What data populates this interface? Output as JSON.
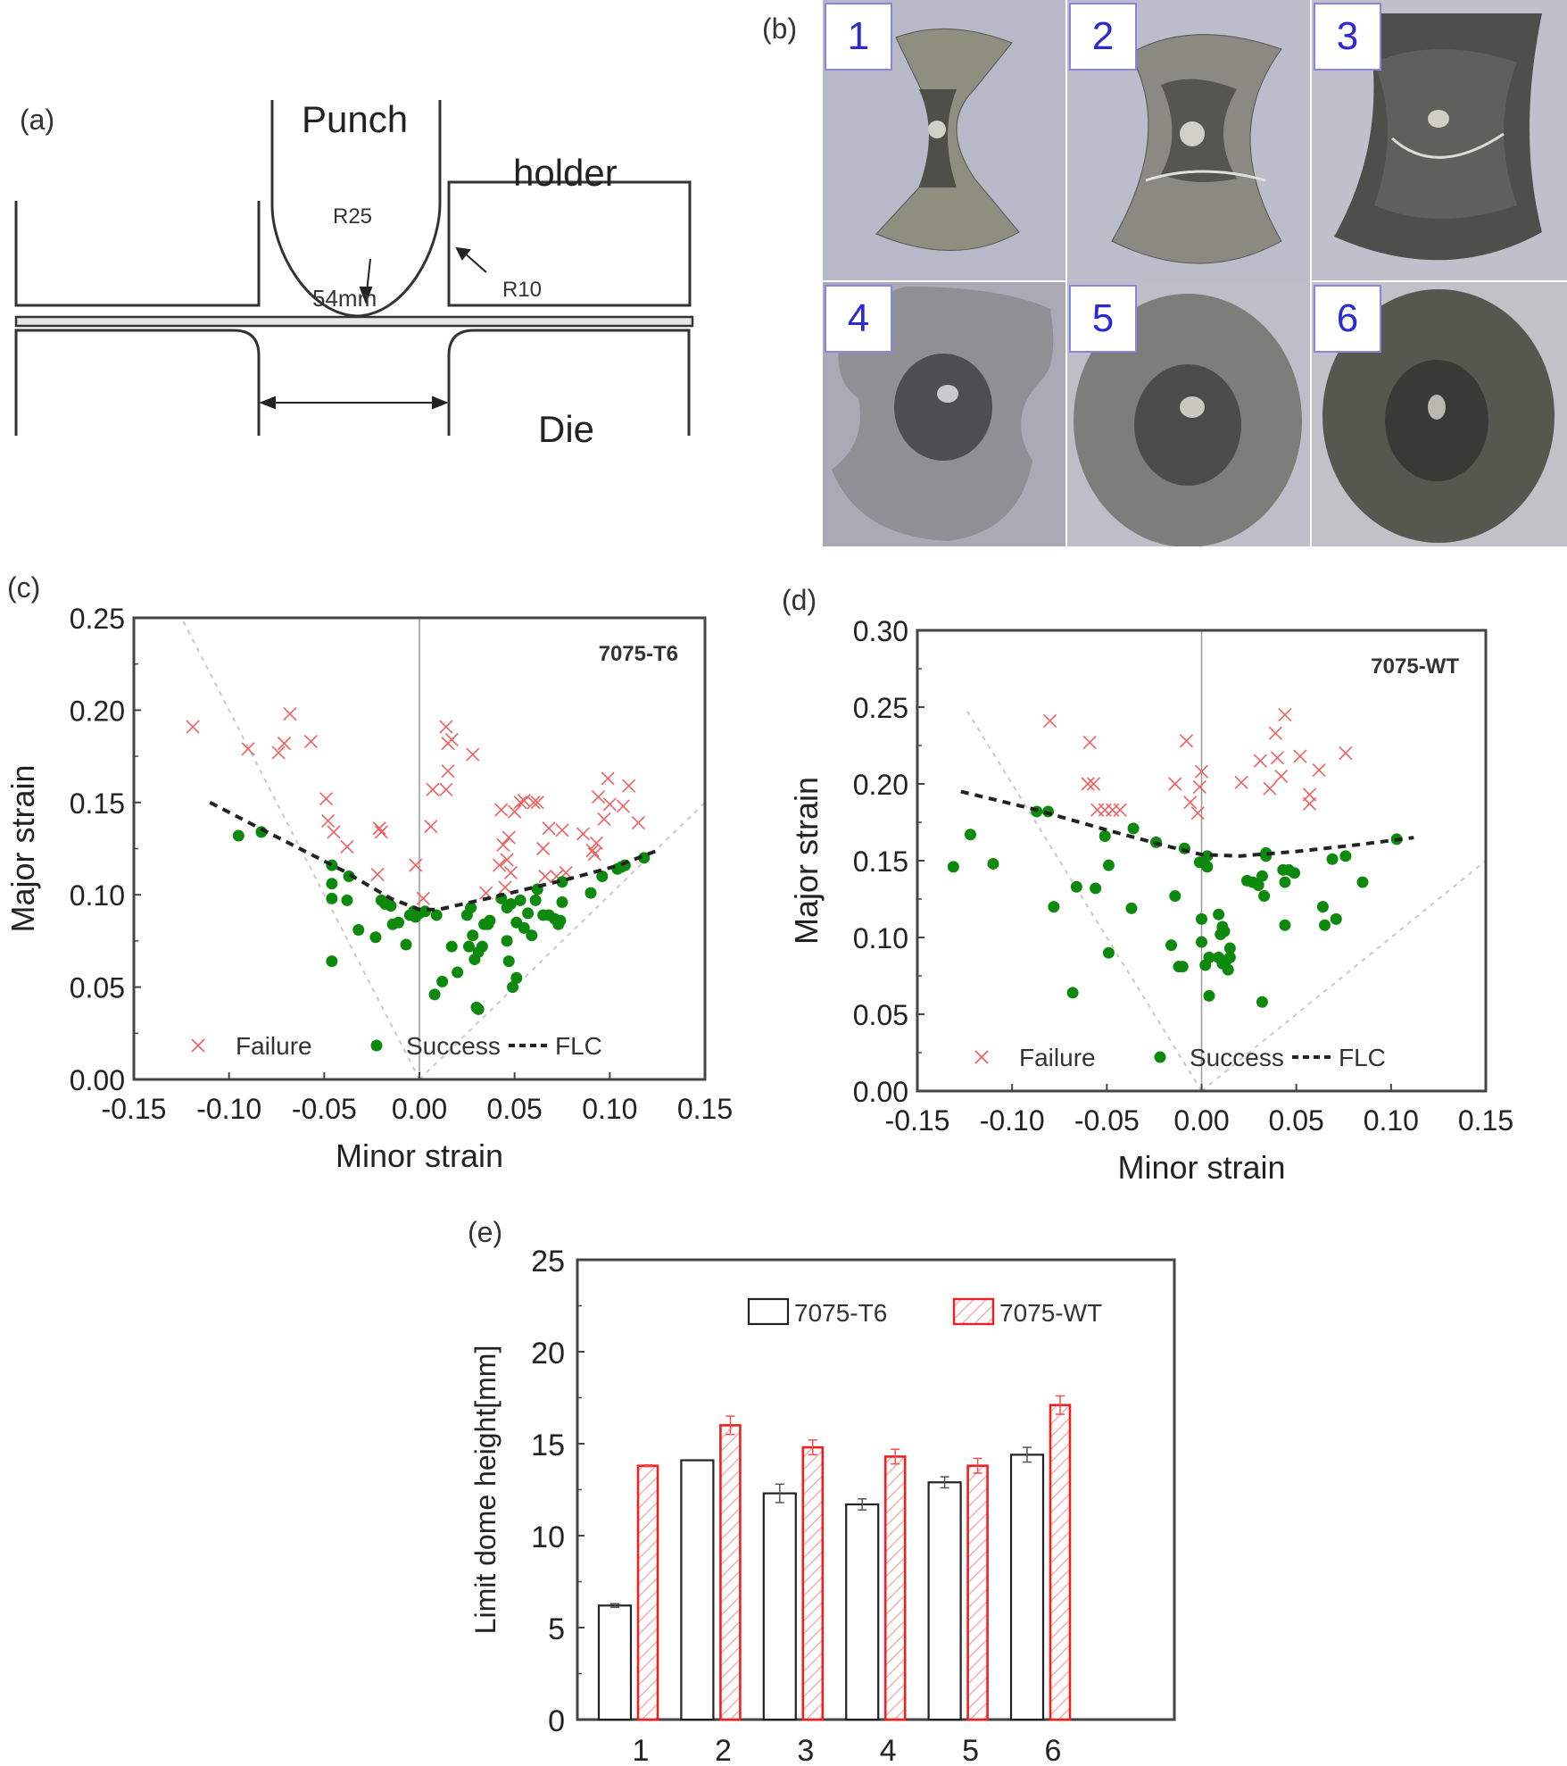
{
  "panels": {
    "a": {
      "label": "(a)",
      "punch": "Punch",
      "holder": "holder",
      "die": "Die",
      "punch_radius": "R25",
      "die_radius": "R10",
      "gap": "54mm"
    },
    "b": {
      "label": "(b)",
      "specimens": [
        "1",
        "2",
        "3",
        "4",
        "5",
        "6"
      ]
    },
    "c": {
      "label": "(c)"
    },
    "d": {
      "label": "(d)"
    },
    "e": {
      "label": "(e)"
    }
  },
  "chart_data": [
    {
      "id": "c",
      "type": "scatter",
      "title": "",
      "annotation": "7075-T6",
      "xlabel": "Minor strain",
      "ylabel": "Major strain",
      "xlim": [
        -0.15,
        0.15
      ],
      "ylim": [
        0.0,
        0.25
      ],
      "xticks": [
        "-0.15",
        "-0.10",
        "-0.05",
        "0.00",
        "0.05",
        "0.10",
        "0.15"
      ],
      "yticks": [
        "0.00",
        "0.05",
        "0.10",
        "0.15",
        "0.20",
        "0.25"
      ],
      "legend": {
        "placement": "bottom",
        "entries": [
          "Failure",
          "Success",
          "FLC"
        ]
      },
      "grid": false,
      "series": [
        {
          "name": "Failure",
          "marker": "x",
          "color": "#f06060",
          "points": [
            [
              -0.119,
              0.191
            ],
            [
              -0.09,
              0.179
            ],
            [
              -0.074,
              0.177
            ],
            [
              -0.071,
              0.182
            ],
            [
              -0.068,
              0.198
            ],
            [
              -0.057,
              0.183
            ],
            [
              -0.049,
              0.152
            ],
            [
              -0.048,
              0.14
            ],
            [
              -0.045,
              0.134
            ],
            [
              -0.038,
              0.126
            ],
            [
              -0.021,
              0.136
            ],
            [
              -0.02,
              0.134
            ],
            [
              -0.022,
              0.111
            ],
            [
              -0.002,
              0.116
            ],
            [
              0.002,
              0.098
            ],
            [
              0.006,
              0.137
            ],
            [
              0.007,
              0.157
            ],
            [
              0.014,
              0.157
            ],
            [
              0.015,
              0.167
            ],
            [
              0.014,
              0.191
            ],
            [
              0.015,
              0.182
            ],
            [
              0.017,
              0.184
            ],
            [
              0.028,
              0.176
            ],
            [
              0.035,
              0.101
            ],
            [
              0.042,
              0.116
            ],
            [
              0.043,
              0.146
            ],
            [
              0.044,
              0.127
            ],
            [
              0.046,
              0.119
            ],
            [
              0.047,
              0.131
            ],
            [
              0.048,
              0.112
            ],
            [
              0.045,
              0.104
            ],
            [
              0.05,
              0.145
            ],
            [
              0.053,
              0.15
            ],
            [
              0.055,
              0.151
            ],
            [
              0.06,
              0.15
            ],
            [
              0.062,
              0.15
            ],
            [
              0.065,
              0.125
            ],
            [
              0.066,
              0.11
            ],
            [
              0.068,
              0.136
            ],
            [
              0.072,
              0.11
            ],
            [
              0.075,
              0.135
            ],
            [
              0.077,
              0.112
            ],
            [
              0.086,
              0.133
            ],
            [
              0.091,
              0.124
            ],
            [
              0.093,
              0.128
            ],
            [
              0.094,
              0.153
            ],
            [
              0.097,
              0.141
            ],
            [
              0.099,
              0.163
            ],
            [
              0.1,
              0.149
            ],
            [
              0.107,
              0.148
            ],
            [
              0.11,
              0.159
            ],
            [
              0.115,
              0.139
            ],
            [
              0.092,
              0.122
            ]
          ]
        },
        {
          "name": "Success",
          "marker": "o",
          "color": "#0d8a0d",
          "points": [
            [
              -0.095,
              0.132
            ],
            [
              -0.083,
              0.134
            ],
            [
              -0.046,
              0.116
            ],
            [
              -0.046,
              0.106
            ],
            [
              -0.046,
              0.098
            ],
            [
              -0.046,
              0.064
            ],
            [
              -0.037,
              0.11
            ],
            [
              -0.038,
              0.097
            ],
            [
              -0.032,
              0.081
            ],
            [
              -0.023,
              0.077
            ],
            [
              -0.02,
              0.097
            ],
            [
              -0.018,
              0.095
            ],
            [
              -0.017,
              0.096
            ],
            [
              -0.015,
              0.094
            ],
            [
              -0.014,
              0.084
            ],
            [
              -0.011,
              0.085
            ],
            [
              -0.007,
              0.073
            ],
            [
              -0.005,
              0.089
            ],
            [
              -0.003,
              0.091
            ],
            [
              -0.002,
              0.088
            ],
            [
              0.0,
              0.09
            ],
            [
              0.003,
              0.091
            ],
            [
              0.009,
              0.089
            ],
            [
              0.008,
              0.046
            ],
            [
              0.012,
              0.053
            ],
            [
              0.017,
              0.072
            ],
            [
              0.02,
              0.058
            ],
            [
              0.025,
              0.089
            ],
            [
              0.026,
              0.072
            ],
            [
              0.027,
              0.093
            ],
            [
              0.028,
              0.078
            ],
            [
              0.029,
              0.065
            ],
            [
              0.03,
              0.039
            ],
            [
              0.031,
              0.069
            ],
            [
              0.031,
              0.038
            ],
            [
              0.033,
              0.072
            ],
            [
              0.034,
              0.084
            ],
            [
              0.036,
              0.084
            ],
            [
              0.037,
              0.086
            ],
            [
              0.043,
              0.098
            ],
            [
              0.046,
              0.093
            ],
            [
              0.046,
              0.075
            ],
            [
              0.047,
              0.064
            ],
            [
              0.048,
              0.095
            ],
            [
              0.049,
              0.05
            ],
            [
              0.051,
              0.085
            ],
            [
              0.051,
              0.055
            ],
            [
              0.053,
              0.097
            ],
            [
              0.055,
              0.082
            ],
            [
              0.057,
              0.09
            ],
            [
              0.059,
              0.078
            ],
            [
              0.061,
              0.097
            ],
            [
              0.062,
              0.103
            ],
            [
              0.065,
              0.089
            ],
            [
              0.068,
              0.089
            ],
            [
              0.071,
              0.087
            ],
            [
              0.073,
              0.084
            ],
            [
              0.074,
              0.086
            ],
            [
              0.075,
              0.096
            ],
            [
              0.075,
              0.107
            ],
            [
              0.09,
              0.101
            ],
            [
              0.096,
              0.11
            ],
            [
              0.104,
              0.114
            ],
            [
              0.106,
              0.115
            ],
            [
              0.108,
              0.116
            ],
            [
              0.118,
              0.12
            ]
          ]
        },
        {
          "name": "FLC",
          "style": "dashed",
          "color": "#222222",
          "points": [
            [
              -0.11,
              0.15
            ],
            [
              -0.08,
              0.134
            ],
            [
              -0.04,
              0.113
            ],
            [
              -0.015,
              0.098
            ],
            [
              0.0,
              0.092
            ],
            [
              0.01,
              0.092
            ],
            [
              0.04,
              0.099
            ],
            [
              0.08,
              0.109
            ],
            [
              0.105,
              0.116
            ],
            [
              0.125,
              0.124
            ]
          ]
        }
      ]
    },
    {
      "id": "d",
      "type": "scatter",
      "title": "",
      "annotation": "7075-WT",
      "xlabel": "Minor strain",
      "ylabel": "Major strain",
      "xlim": [
        -0.15,
        0.15
      ],
      "ylim": [
        0.0,
        0.3
      ],
      "xticks": [
        "-0.15",
        "-0.10",
        "-0.05",
        "0.00",
        "0.05",
        "0.10",
        "0.15"
      ],
      "yticks": [
        "0.00",
        "0.05",
        "0.10",
        "0.15",
        "0.20",
        "0.25",
        "0.30"
      ],
      "legend": {
        "placement": "bottom",
        "entries": [
          "Failure",
          "Success",
          "FLC"
        ]
      },
      "grid": false,
      "series": [
        {
          "name": "Failure",
          "marker": "x",
          "color": "#f06060",
          "points": [
            [
              -0.08,
              0.241
            ],
            [
              -0.059,
              0.227
            ],
            [
              -0.06,
              0.2
            ],
            [
              -0.057,
              0.2
            ],
            [
              -0.055,
              0.183
            ],
            [
              -0.051,
              0.183
            ],
            [
              -0.047,
              0.183
            ],
            [
              -0.043,
              0.183
            ],
            [
              -0.008,
              0.228
            ],
            [
              -0.014,
              0.2
            ],
            [
              -0.006,
              0.188
            ],
            [
              0.0,
              0.208
            ],
            [
              -0.001,
              0.198
            ],
            [
              -0.002,
              0.181
            ],
            [
              0.021,
              0.201
            ],
            [
              0.031,
              0.215
            ],
            [
              0.036,
              0.197
            ],
            [
              0.039,
              0.233
            ],
            [
              0.04,
              0.217
            ],
            [
              0.042,
              0.205
            ],
            [
              0.044,
              0.245
            ],
            [
              0.052,
              0.218
            ],
            [
              0.057,
              0.193
            ],
            [
              0.057,
              0.187
            ],
            [
              0.062,
              0.209
            ],
            [
              0.076,
              0.22
            ]
          ]
        },
        {
          "name": "Success",
          "marker": "o",
          "color": "#0d8a0d",
          "points": [
            [
              -0.131,
              0.146
            ],
            [
              -0.122,
              0.167
            ],
            [
              -0.11,
              0.148
            ],
            [
              -0.087,
              0.182
            ],
            [
              -0.081,
              0.182
            ],
            [
              -0.078,
              0.12
            ],
            [
              -0.068,
              0.064
            ],
            [
              -0.066,
              0.133
            ],
            [
              -0.056,
              0.132
            ],
            [
              -0.051,
              0.166
            ],
            [
              -0.049,
              0.147
            ],
            [
              -0.049,
              0.09
            ],
            [
              -0.036,
              0.171
            ],
            [
              -0.037,
              0.119
            ],
            [
              -0.024,
              0.162
            ],
            [
              -0.014,
              0.127
            ],
            [
              -0.016,
              0.095
            ],
            [
              -0.012,
              0.081
            ],
            [
              -0.01,
              0.081
            ],
            [
              -0.009,
              0.158
            ],
            [
              -0.001,
              0.149
            ],
            [
              0.0,
              0.112
            ],
            [
              0.0,
              0.097
            ],
            [
              0.002,
              0.082
            ],
            [
              0.003,
              0.146
            ],
            [
              0.003,
              0.153
            ],
            [
              0.004,
              0.062
            ],
            [
              0.004,
              0.087
            ],
            [
              0.009,
              0.115
            ],
            [
              0.009,
              0.087
            ],
            [
              0.01,
              0.102
            ],
            [
              0.011,
              0.083
            ],
            [
              0.011,
              0.107
            ],
            [
              0.012,
              0.104
            ],
            [
              0.013,
              0.085
            ],
            [
              0.014,
              0.079
            ],
            [
              0.015,
              0.087
            ],
            [
              0.015,
              0.093
            ],
            [
              0.024,
              0.137
            ],
            [
              0.027,
              0.136
            ],
            [
              0.03,
              0.134
            ],
            [
              0.032,
              0.058
            ],
            [
              0.032,
              0.14
            ],
            [
              0.033,
              0.127
            ],
            [
              0.034,
              0.155
            ],
            [
              0.034,
              0.153
            ],
            [
              0.043,
              0.144
            ],
            [
              0.044,
              0.108
            ],
            [
              0.044,
              0.136
            ],
            [
              0.046,
              0.144
            ],
            [
              0.049,
              0.142
            ],
            [
              0.064,
              0.12
            ],
            [
              0.065,
              0.108
            ],
            [
              0.069,
              0.151
            ],
            [
              0.071,
              0.112
            ],
            [
              0.076,
              0.153
            ],
            [
              0.085,
              0.136
            ],
            [
              0.103,
              0.164
            ]
          ]
        },
        {
          "name": "FLC",
          "style": "dashed",
          "color": "#222222",
          "points": [
            [
              -0.127,
              0.195
            ],
            [
              -0.09,
              0.184
            ],
            [
              -0.05,
              0.17
            ],
            [
              -0.02,
              0.16
            ],
            [
              0.0,
              0.154
            ],
            [
              0.02,
              0.153
            ],
            [
              0.05,
              0.156
            ],
            [
              0.08,
              0.16
            ],
            [
              0.112,
              0.165
            ]
          ]
        }
      ]
    },
    {
      "id": "e",
      "type": "bar",
      "title": "",
      "xlabel": "",
      "ylabel": "Limit dome height[mm]",
      "ylim": [
        0,
        25
      ],
      "yticks": [
        "0",
        "5",
        "10",
        "15",
        "20",
        "25"
      ],
      "categories": [
        "1",
        "2",
        "3",
        "4",
        "5",
        "6"
      ],
      "legend": {
        "placement": "top-right",
        "entries": [
          "7075-T6",
          "7075-WT"
        ]
      },
      "grid": false,
      "series": [
        {
          "name": "7075-T6",
          "color": "#222222",
          "fill": "none",
          "values": [
            6.2,
            14.1,
            12.3,
            11.7,
            12.9,
            14.4
          ],
          "errors": [
            0.1,
            0.0,
            0.5,
            0.3,
            0.3,
            0.4
          ]
        },
        {
          "name": "7075-WT",
          "color": "#f02020",
          "fill": "hatched",
          "values": [
            13.8,
            16.0,
            14.8,
            14.3,
            13.8,
            17.1
          ],
          "errors": [
            0.05,
            0.5,
            0.4,
            0.4,
            0.4,
            0.5
          ]
        }
      ]
    }
  ]
}
